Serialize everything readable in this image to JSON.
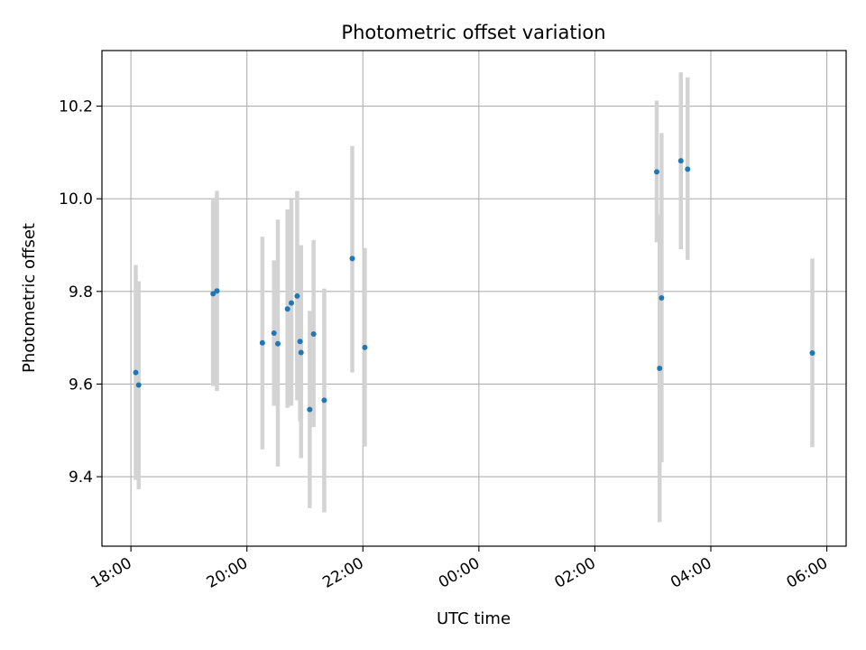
{
  "chart_data": {
    "type": "scatter",
    "title": "Photometric offset variation",
    "xlabel": "UTC time",
    "ylabel": "Photometric offset",
    "x_ticks": [
      "18:00",
      "20:00",
      "22:00",
      "00:00",
      "02:00",
      "04:00",
      "06:00"
    ],
    "y_ticks": [
      "9.4",
      "9.6",
      "9.8",
      "10.0",
      "10.2"
    ],
    "xlim": [
      "17:30",
      "06:20"
    ],
    "ylim": [
      9.25,
      10.32
    ],
    "grid": true,
    "x_is_time_crossing_midnight": true,
    "points": [
      {
        "x": "18:05",
        "y": 9.625,
        "err_low": 9.393,
        "err_high": 9.857
      },
      {
        "x": "18:08",
        "y": 9.598,
        "err_low": 9.373,
        "err_high": 9.822
      },
      {
        "x": "19:25",
        "y": 9.795,
        "err_low": 9.596,
        "err_high": 9.998
      },
      {
        "x": "19:29",
        "y": 9.801,
        "err_low": 9.585,
        "err_high": 10.017
      },
      {
        "x": "20:16",
        "y": 9.689,
        "err_low": 9.459,
        "err_high": 9.918
      },
      {
        "x": "20:28",
        "y": 9.71,
        "err_low": 9.553,
        "err_high": 9.867
      },
      {
        "x": "20:32",
        "y": 9.687,
        "err_low": 9.422,
        "err_high": 9.955
      },
      {
        "x": "20:42",
        "y": 9.762,
        "err_low": 9.549,
        "err_high": 9.977
      },
      {
        "x": "20:46",
        "y": 9.775,
        "err_low": 9.553,
        "err_high": 9.999
      },
      {
        "x": "20:52",
        "y": 9.79,
        "err_low": 9.565,
        "err_high": 10.017
      },
      {
        "x": "20:55",
        "y": 9.692,
        "err_low": 9.52,
        "err_high": 9.9
      },
      {
        "x": "20:56",
        "y": 9.668,
        "err_low": 9.44,
        "err_high": 9.9
      },
      {
        "x": "21:05",
        "y": 9.545,
        "err_low": 9.332,
        "err_high": 9.758
      },
      {
        "x": "21:09",
        "y": 9.708,
        "err_low": 9.507,
        "err_high": 9.911
      },
      {
        "x": "21:20",
        "y": 9.565,
        "err_low": 9.323,
        "err_high": 9.806
      },
      {
        "x": "21:49",
        "y": 9.871,
        "err_low": 9.625,
        "err_high": 10.114
      },
      {
        "x": "22:02",
        "y": 9.679,
        "err_low": 9.465,
        "err_high": 9.894
      },
      {
        "x": "03:04",
        "y": 10.058,
        "err_low": 9.906,
        "err_high": 10.212
      },
      {
        "x": "03:07",
        "y": 9.634,
        "err_low": 9.302,
        "err_high": 9.966
      },
      {
        "x": "03:09",
        "y": 9.786,
        "err_low": 9.431,
        "err_high": 10.142
      },
      {
        "x": "03:29",
        "y": 10.082,
        "err_low": 9.891,
        "err_high": 10.273
      },
      {
        "x": "03:36",
        "y": 10.064,
        "err_low": 9.868,
        "err_high": 10.262
      },
      {
        "x": "05:45",
        "y": 9.667,
        "err_low": 9.464,
        "err_high": 9.871
      }
    ],
    "colors": {
      "point": "#1f77b4",
      "errorbar": "#d3d3d3",
      "grid": "#b0b0b0"
    }
  }
}
